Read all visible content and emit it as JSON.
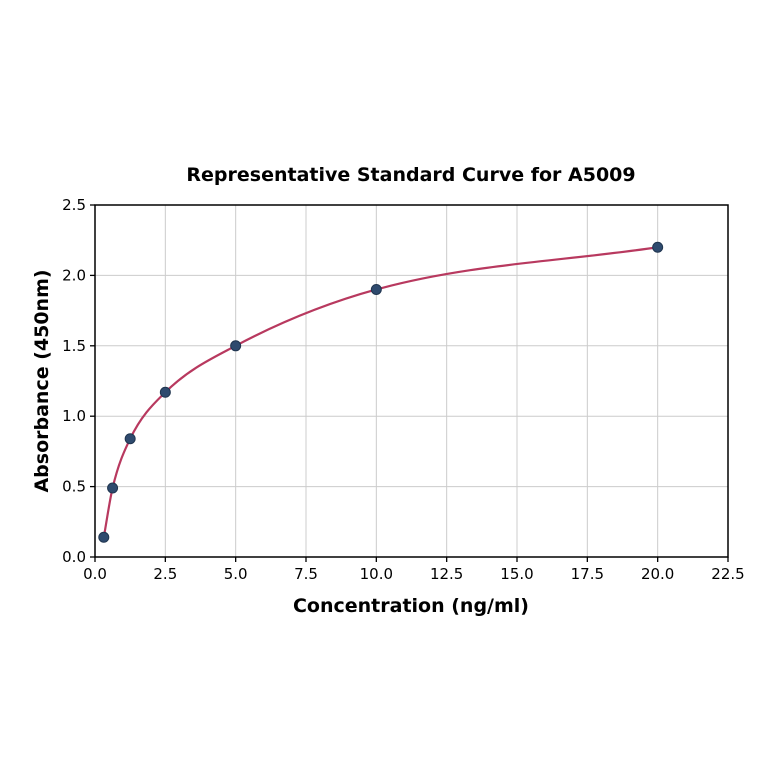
{
  "page": {
    "background": "#ffffff"
  },
  "chart_data": {
    "type": "line",
    "title": "Representative Standard Curve for A5009",
    "xlabel": "Concentration (ng/ml)",
    "ylabel": "Absorbance (450nm)",
    "series": [
      {
        "name": "standard-curve",
        "x": [
          0.3125,
          0.625,
          1.25,
          2.5,
          5,
          10,
          20
        ],
        "y": [
          0.14,
          0.49,
          0.84,
          1.17,
          1.5,
          1.9,
          2.2
        ],
        "marker": "circle",
        "line": "smooth"
      }
    ],
    "xlim": [
      0,
      22.5
    ],
    "ylim": [
      0,
      2.5
    ],
    "xticks": [
      0,
      2.5,
      5,
      7.5,
      10,
      12.5,
      15,
      17.5,
      20,
      22.5
    ],
    "xtick_labels": [
      "0.0",
      "2.5",
      "5.0",
      "7.5",
      "10.0",
      "12.5",
      "15.0",
      "17.5",
      "20.0",
      "22.5"
    ],
    "yticks": [
      0,
      0.5,
      1.0,
      1.5,
      2.0,
      2.5
    ],
    "ytick_labels": [
      "0.0",
      "0.5",
      "1.0",
      "1.5",
      "2.0",
      "2.5"
    ],
    "grid": true,
    "legend": "none",
    "colors": {
      "curve": "#b8395f",
      "marker_fill": "#2e4a6e",
      "marker_edge": "#20354f",
      "grid": "#cccccc",
      "spine": "#000000",
      "background": "#ffffff"
    },
    "marker_radius": 5,
    "line_width": 2.2
  }
}
